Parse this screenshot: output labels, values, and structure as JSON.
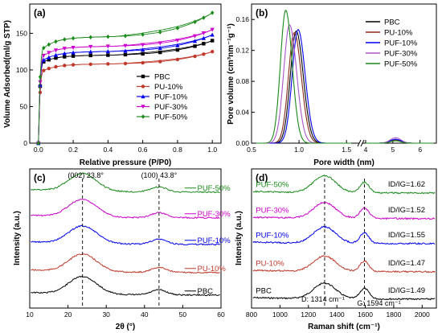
{
  "chart_data": [
    {
      "panel": "(a)",
      "type": "line",
      "xlabel": "Relative pressure (P/P0)",
      "ylabel": "Volume Adsorbed(ml/g STP)",
      "xlim": [
        -0.05,
        1.05
      ],
      "ylim": [
        0,
        190
      ],
      "xticks": [
        0.0,
        0.2,
        0.4,
        0.6,
        0.8,
        1.0
      ],
      "yticks": [
        0,
        50,
        100,
        150
      ],
      "legend": "center-right",
      "series": [
        {
          "name": "PBC",
          "color": "#000000",
          "marker": "square",
          "plateau": 120,
          "top": 140,
          "bend": 110
        },
        {
          "name": "PU-10%",
          "color": "#c0392b",
          "marker": "circle",
          "plateau": 108,
          "top": 125,
          "bend": 98
        },
        {
          "name": "PUF-10%",
          "color": "#0000ee",
          "marker": "triangle",
          "plateau": 125,
          "top": 148,
          "bend": 112
        },
        {
          "name": "PUF-30%",
          "color": "#cc00cc",
          "marker": "triangle-down",
          "plateau": 132,
          "top": 155,
          "bend": 118
        },
        {
          "name": "PUF-50%",
          "color": "#1a8a1a",
          "marker": "diamond",
          "plateau": 145,
          "top": 178,
          "bend": 128
        }
      ]
    },
    {
      "panel": "(b)",
      "type": "line",
      "xlabel": "Pore width (nm)",
      "ylabel": "Pore volume (cm³nm⁻¹g⁻¹)",
      "ylim": [
        0,
        0.18
      ],
      "yticks": [
        0.0,
        0.04,
        0.08,
        0.12,
        0.16
      ],
      "xticks": [
        "0.5",
        "1.0",
        "1.5",
        "4",
        "5",
        "6"
      ],
      "axis_break": true,
      "legend": "top-right",
      "series": [
        {
          "name": "PBC",
          "color": "#000000",
          "peak_x": 0.97,
          "peak_y": 0.145,
          "width": 0.11,
          "peak2": 0.004
        },
        {
          "name": "PU-10%",
          "color": "#8b2a1a",
          "peak_x": 0.95,
          "peak_y": 0.143,
          "width": 0.11,
          "peak2": 0.004
        },
        {
          "name": "PUF-10%",
          "color": "#0000ee",
          "peak_x": 0.99,
          "peak_y": 0.147,
          "width": 0.11,
          "peak2": 0.005
        },
        {
          "name": "PUF-30%",
          "color": "#aa55cc",
          "peak_x": 0.9,
          "peak_y": 0.153,
          "width": 0.11,
          "peak2": 0.007
        },
        {
          "name": "PUF-50%",
          "color": "#1a8a1a",
          "peak_x": 0.86,
          "peak_y": 0.172,
          "width": 0.1,
          "peak2": 0.003
        }
      ]
    },
    {
      "panel": "(c)",
      "type": "line",
      "xlabel": "2θ (°)",
      "ylabel": "Intensity (a.u.)",
      "xlim": [
        10,
        60
      ],
      "xticks": [
        10,
        20,
        30,
        40,
        50,
        60
      ],
      "annotations": [
        {
          "text": "(002) 23.8°",
          "x": 23.8
        },
        {
          "text": "(100) 43.8°",
          "x": 43.8
        }
      ],
      "series": [
        {
          "name": "PBC",
          "color": "#000000",
          "offset": 0
        },
        {
          "name": "PU-10%",
          "color": "#c0392b",
          "offset": 1
        },
        {
          "name": "PUF-10%",
          "color": "#0000ee",
          "offset": 2
        },
        {
          "name": "PUF-30%",
          "color": "#cc00cc",
          "offset": 3
        },
        {
          "name": "PUF-50%",
          "color": "#1a8a1a",
          "offset": 4
        }
      ]
    },
    {
      "panel": "(d)",
      "type": "line",
      "xlabel": "Raman shift (cm⁻¹)",
      "ylabel": "Intensity (a.u.)",
      "xlim": [
        800,
        2100
      ],
      "xticks": [
        800,
        1000,
        1200,
        1400,
        1600,
        1800,
        2000
      ],
      "annotations": [
        {
          "text": "D: 1314 cm⁻¹",
          "x": 1314
        },
        {
          "text": "G: 1594 cm⁻¹",
          "x": 1594
        }
      ],
      "series": [
        {
          "name": "PBC",
          "color": "#000000",
          "offset": 0,
          "ratio": "ID/IG=1.49",
          "ratio_value": 1.49
        },
        {
          "name": "PU-10%",
          "color": "#c0392b",
          "offset": 1,
          "ratio": "ID/IG=1.47",
          "ratio_value": 1.47
        },
        {
          "name": "PUF-10%",
          "color": "#0000ee",
          "offset": 2,
          "ratio": "ID/IG=1.55",
          "ratio_value": 1.55
        },
        {
          "name": "PUF-30%",
          "color": "#cc00cc",
          "offset": 3,
          "ratio": "ID/IG=1.52",
          "ratio_value": 1.52
        },
        {
          "name": "PUF-50%",
          "color": "#1a8a1a",
          "offset": 4,
          "ratio": "ID/IG=1.62",
          "ratio_value": 1.62
        }
      ]
    }
  ]
}
